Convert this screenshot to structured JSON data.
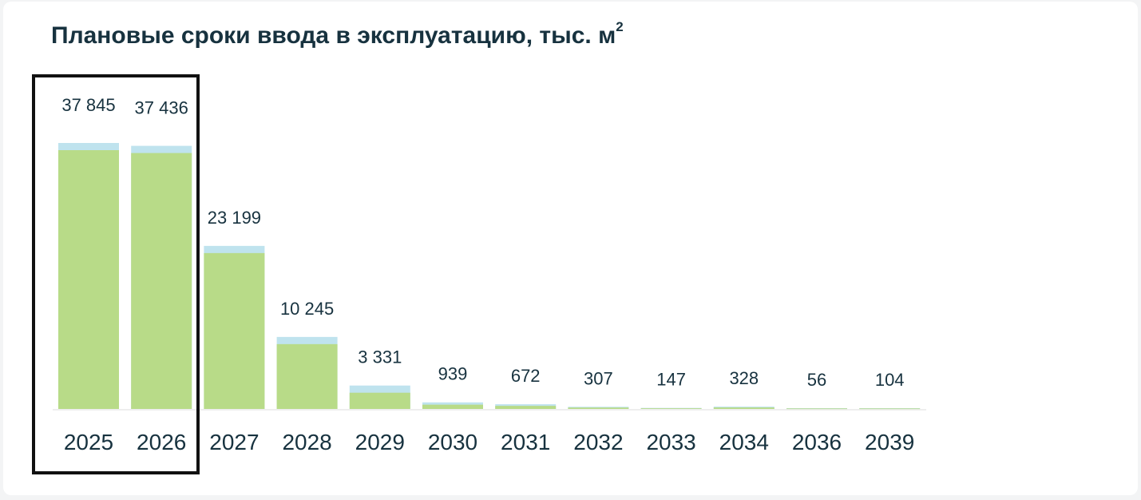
{
  "title": "Плановые сроки ввода в эксплуатацию, тыс. м",
  "title_sup": "2",
  "colors": {
    "bar": "#b8db88",
    "bar_cap": "#bfe3ee",
    "baseline": "#eeeeee",
    "text": "#17323f",
    "highlight_border": "#111111"
  },
  "chart_data": {
    "type": "bar",
    "title": "Плановые сроки ввода в эксплуатацию, тыс. м²",
    "xlabel": "",
    "ylabel": "",
    "categories": [
      "2025",
      "2026",
      "2027",
      "2028",
      "2029",
      "2030",
      "2031",
      "2032",
      "2033",
      "2034",
      "2036",
      "2039"
    ],
    "values": [
      37845,
      37436,
      23199,
      10245,
      3331,
      939,
      672,
      307,
      147,
      328,
      56,
      104
    ],
    "value_labels": [
      "37 845",
      "37 436",
      "23 199",
      "10 245",
      "3 331",
      "939",
      "672",
      "307",
      "147",
      "328",
      "56",
      "104"
    ],
    "ylim": [
      0,
      37845
    ],
    "grid": false,
    "legend": "none",
    "highlighted_categories": [
      "2025",
      "2026"
    ]
  }
}
